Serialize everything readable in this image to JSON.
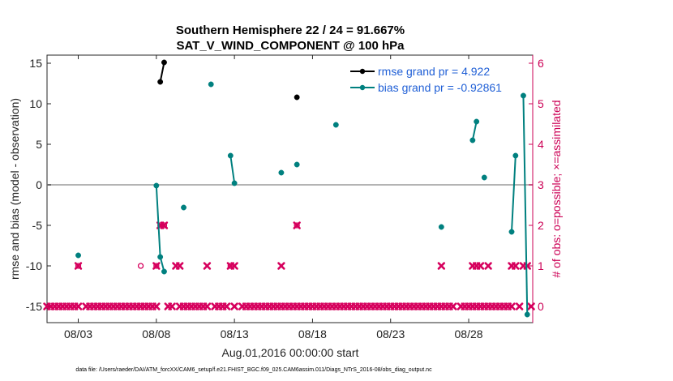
{
  "chart_data": {
    "type": "line",
    "title": "Southern Hemisphere 22 / 24 = 91.667%",
    "subtitle": "SAT_V_WIND_COMPONENT @ 100 hPa",
    "xlabel": "Aug.01,2016 00:00:00 start",
    "ylabel": "rmse and bias (model - observation)",
    "y2label": "# of obs: o=possible; ×=assimilated",
    "xlim": [
      1.0,
      32.1
    ],
    "ylim": [
      -17,
      16
    ],
    "y2lim": [
      -0.4,
      6.2
    ],
    "x_ticks": [
      3,
      8,
      13,
      18,
      23,
      28
    ],
    "x_tick_labels": [
      "08/03",
      "08/08",
      "08/13",
      "08/18",
      "08/23",
      "08/28"
    ],
    "y_ticks": [
      -15,
      -10,
      -5,
      0,
      5,
      10,
      15
    ],
    "y_tick_labels": [
      "-15",
      "-10",
      "-5",
      "0",
      "5",
      "10",
      "15"
    ],
    "y2_ticks": [
      0,
      1,
      2,
      3,
      4,
      5,
      6
    ],
    "y2_tick_labels": [
      "0",
      "1",
      "2",
      "3",
      "4",
      "5",
      "6"
    ],
    "zero_line": 0,
    "series": [
      {
        "name": "rmse",
        "legend": "rmse grand pr = 4.922",
        "color": "#000000",
        "segments": [
          [
            [
              8.25,
              12.7
            ],
            [
              8.5,
              15.1
            ]
          ],
          [
            [
              17.0,
              10.8
            ]
          ]
        ]
      },
      {
        "name": "bias",
        "legend": "bias grand pr = -0.92861",
        "color": "#00807f",
        "segments": [
          [
            [
              3.0,
              -8.7
            ]
          ],
          [
            [
              8.0,
              -0.1
            ],
            [
              8.25,
              -8.9
            ],
            [
              8.5,
              -10.7
            ]
          ],
          [
            [
              9.75,
              -2.8
            ]
          ],
          [
            [
              11.5,
              12.4
            ]
          ],
          [
            [
              12.75,
              3.6
            ],
            [
              13.0,
              0.2
            ]
          ],
          [
            [
              16.0,
              1.5
            ]
          ],
          [
            [
              17.0,
              2.5
            ]
          ],
          [
            [
              19.5,
              7.4
            ]
          ],
          [
            [
              26.25,
              -5.2
            ]
          ],
          [
            [
              28.25,
              5.5
            ],
            [
              28.5,
              7.8
            ]
          ],
          [
            [
              29.0,
              0.9
            ]
          ],
          [
            [
              30.75,
              -5.8
            ],
            [
              31.0,
              3.6
            ]
          ],
          [
            [
              31.5,
              11.0
            ],
            [
              31.75,
              -16.0
            ]
          ]
        ]
      }
    ],
    "obs_possible": [
      [
        3.0,
        1
      ],
      [
        7.0,
        1
      ],
      [
        8.0,
        1
      ],
      [
        8.25,
        2
      ],
      [
        8.5,
        2
      ],
      [
        12.75,
        1
      ],
      [
        17.0,
        2
      ]
    ],
    "obs_assimilated": [
      [
        1.0,
        0
      ],
      [
        1.25,
        0
      ],
      [
        1.5,
        0
      ],
      [
        1.75,
        0
      ],
      [
        2.0,
        0
      ],
      [
        2.25,
        0
      ],
      [
        2.5,
        0
      ],
      [
        2.75,
        0
      ],
      [
        3.0,
        0
      ],
      [
        3.5,
        0
      ],
      [
        3.75,
        0
      ],
      [
        4.0,
        0
      ],
      [
        4.25,
        0
      ],
      [
        4.5,
        0
      ],
      [
        4.75,
        0
      ],
      [
        5.0,
        0
      ],
      [
        5.25,
        0
      ],
      [
        5.5,
        0
      ],
      [
        5.75,
        0
      ],
      [
        6.0,
        0
      ],
      [
        6.25,
        0
      ],
      [
        6.5,
        0
      ],
      [
        6.75,
        0
      ],
      [
        7.0,
        0
      ],
      [
        7.25,
        0
      ],
      [
        7.5,
        0
      ],
      [
        7.75,
        0
      ],
      [
        8.0,
        0
      ],
      [
        8.75,
        0
      ],
      [
        9.0,
        0
      ],
      [
        9.5,
        0
      ],
      [
        9.75,
        0
      ],
      [
        10.0,
        0
      ],
      [
        10.25,
        0
      ],
      [
        10.5,
        0
      ],
      [
        10.75,
        0
      ],
      [
        11.0,
        0
      ],
      [
        11.25,
        0
      ],
      [
        11.75,
        0
      ],
      [
        12.0,
        0
      ],
      [
        12.25,
        0
      ],
      [
        12.5,
        0
      ],
      [
        13.0,
        0
      ],
      [
        13.5,
        0
      ],
      [
        13.75,
        0
      ],
      [
        14.0,
        0
      ],
      [
        14.25,
        0
      ],
      [
        14.5,
        0
      ],
      [
        14.75,
        0
      ],
      [
        15.0,
        0
      ],
      [
        15.25,
        0
      ],
      [
        15.5,
        0
      ],
      [
        15.75,
        0
      ],
      [
        16.0,
        0
      ],
      [
        16.25,
        0
      ],
      [
        16.5,
        0
      ],
      [
        16.75,
        0
      ],
      [
        17.0,
        0
      ],
      [
        17.25,
        0
      ],
      [
        17.5,
        0
      ],
      [
        17.75,
        0
      ],
      [
        18.0,
        0
      ],
      [
        18.25,
        0
      ],
      [
        18.5,
        0
      ],
      [
        18.75,
        0
      ],
      [
        19.0,
        0
      ],
      [
        19.25,
        0
      ],
      [
        19.5,
        0
      ],
      [
        19.75,
        0
      ],
      [
        20.0,
        0
      ],
      [
        20.25,
        0
      ],
      [
        20.5,
        0
      ],
      [
        20.75,
        0
      ],
      [
        21.0,
        0
      ],
      [
        21.25,
        0
      ],
      [
        21.5,
        0
      ],
      [
        21.75,
        0
      ],
      [
        22.0,
        0
      ],
      [
        22.25,
        0
      ],
      [
        22.5,
        0
      ],
      [
        22.75,
        0
      ],
      [
        23.0,
        0
      ],
      [
        23.25,
        0
      ],
      [
        23.5,
        0
      ],
      [
        23.75,
        0
      ],
      [
        24.0,
        0
      ],
      [
        24.25,
        0
      ],
      [
        24.5,
        0
      ],
      [
        24.75,
        0
      ],
      [
        25.0,
        0
      ],
      [
        25.25,
        0
      ],
      [
        25.5,
        0
      ],
      [
        25.75,
        0
      ],
      [
        26.0,
        0
      ],
      [
        26.25,
        0
      ],
      [
        26.5,
        0
      ],
      [
        26.75,
        0
      ],
      [
        27.0,
        0
      ],
      [
        27.5,
        0
      ],
      [
        27.75,
        0
      ],
      [
        28.0,
        0
      ],
      [
        28.25,
        0
      ],
      [
        28.5,
        0
      ],
      [
        28.75,
        0
      ],
      [
        29.0,
        0
      ],
      [
        29.25,
        0
      ],
      [
        29.5,
        0
      ],
      [
        29.75,
        0
      ],
      [
        30.0,
        0
      ],
      [
        30.25,
        0
      ],
      [
        30.5,
        0
      ],
      [
        30.75,
        0
      ],
      [
        31.25,
        0
      ],
      [
        32.0,
        0
      ],
      [
        3.0,
        1
      ],
      [
        8.0,
        1
      ],
      [
        9.25,
        1
      ],
      [
        9.5,
        1
      ],
      [
        11.25,
        1
      ],
      [
        12.75,
        1
      ],
      [
        13.0,
        1
      ],
      [
        16.0,
        1
      ],
      [
        26.25,
        1
      ],
      [
        28.25,
        1
      ],
      [
        28.5,
        1
      ],
      [
        28.75,
        1
      ],
      [
        29.25,
        1
      ],
      [
        30.75,
        1
      ],
      [
        31.0,
        1
      ],
      [
        31.5,
        1
      ],
      [
        31.75,
        1
      ],
      [
        8.25,
        2
      ],
      [
        8.5,
        2
      ],
      [
        17.0,
        2
      ]
    ],
    "footer": "data file: /Users/raeder/DAI/ATM_forcXX/CAM6_setup/f.e21.FHIST_BGC.f09_025.CAM6assim.011/Diags_NTrS_2016-08/obs_diag_output.nc"
  }
}
